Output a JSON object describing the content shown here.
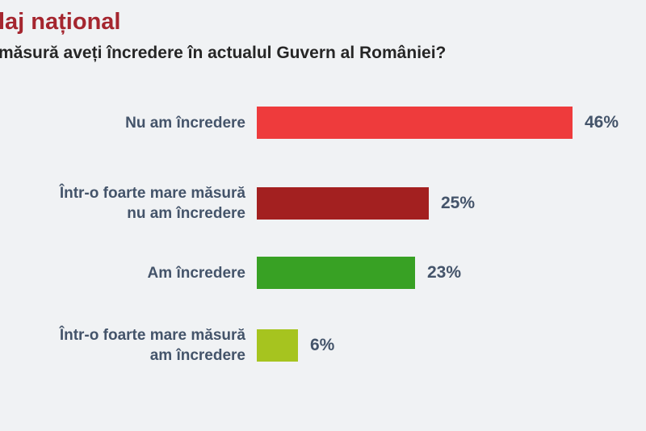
{
  "page": {
    "background_color": "#f0f2f4",
    "text_color": "#44546a"
  },
  "header": {
    "title": "laj național",
    "title_color": "#a5262f",
    "question": "măsură aveți încredere în actualul Guvern al României?",
    "question_color": "#262626"
  },
  "chart_data": {
    "type": "bar",
    "orientation": "horizontal",
    "title": "laj național",
    "subtitle": "măsură aveți încredere în actualul Guvern al României?",
    "xlabel": "",
    "ylabel": "",
    "xlim": [
      0,
      52
    ],
    "grid": false,
    "legend": false,
    "categories": [
      "Nu am încredere",
      "Într-o foarte mare măsură nu am încredere",
      "Am încredere",
      "Într-o foarte mare măsură am încredere"
    ],
    "values": [
      46,
      25,
      23,
      6
    ],
    "rows": [
      {
        "label_line1": "Nu am încredere",
        "label_line2": "",
        "value": 46,
        "value_label": "46%",
        "color": "#ee3b3c"
      },
      {
        "label_line1": "Într-o foarte mare măsură",
        "label_line2": "nu am încredere",
        "value": 25,
        "value_label": "25%",
        "color": "#a32020"
      },
      {
        "label_line1": "Am încredere",
        "label_line2": "",
        "value": 23,
        "value_label": "23%",
        "color": "#38a124"
      },
      {
        "label_line1": "Într-o foarte mare măsură",
        "label_line2": "am încredere",
        "value": 6,
        "value_label": "6%",
        "color": "#a6c41f"
      }
    ]
  }
}
